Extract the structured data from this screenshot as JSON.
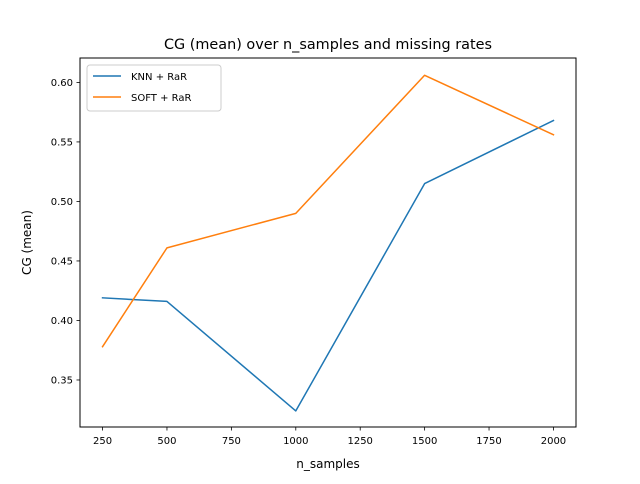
{
  "chart_data": {
    "type": "line",
    "title": "CG (mean) over n_samples and missing rates",
    "xlabel": "n_samples",
    "ylabel": "CG (mean)",
    "xlim": [
      162.5,
      2087.5
    ],
    "ylim": [
      0.3105,
      0.6205
    ],
    "x_ticks": [
      250,
      500,
      750,
      1000,
      1250,
      1500,
      1750,
      2000
    ],
    "y_ticks": [
      0.35,
      0.4,
      0.45,
      0.5,
      0.55,
      0.6
    ],
    "legend_position": "top-left",
    "grid": false,
    "x": [
      250,
      500,
      1000,
      1500,
      2000
    ],
    "series": [
      {
        "name": "KNN + RaR",
        "color": "#1f77b4",
        "values": [
          0.419,
          0.416,
          0.324,
          0.515,
          0.568
        ]
      },
      {
        "name": "SOFT + RaR",
        "color": "#ff7f0e",
        "values": [
          0.378,
          0.461,
          0.49,
          0.606,
          0.556
        ]
      }
    ]
  }
}
